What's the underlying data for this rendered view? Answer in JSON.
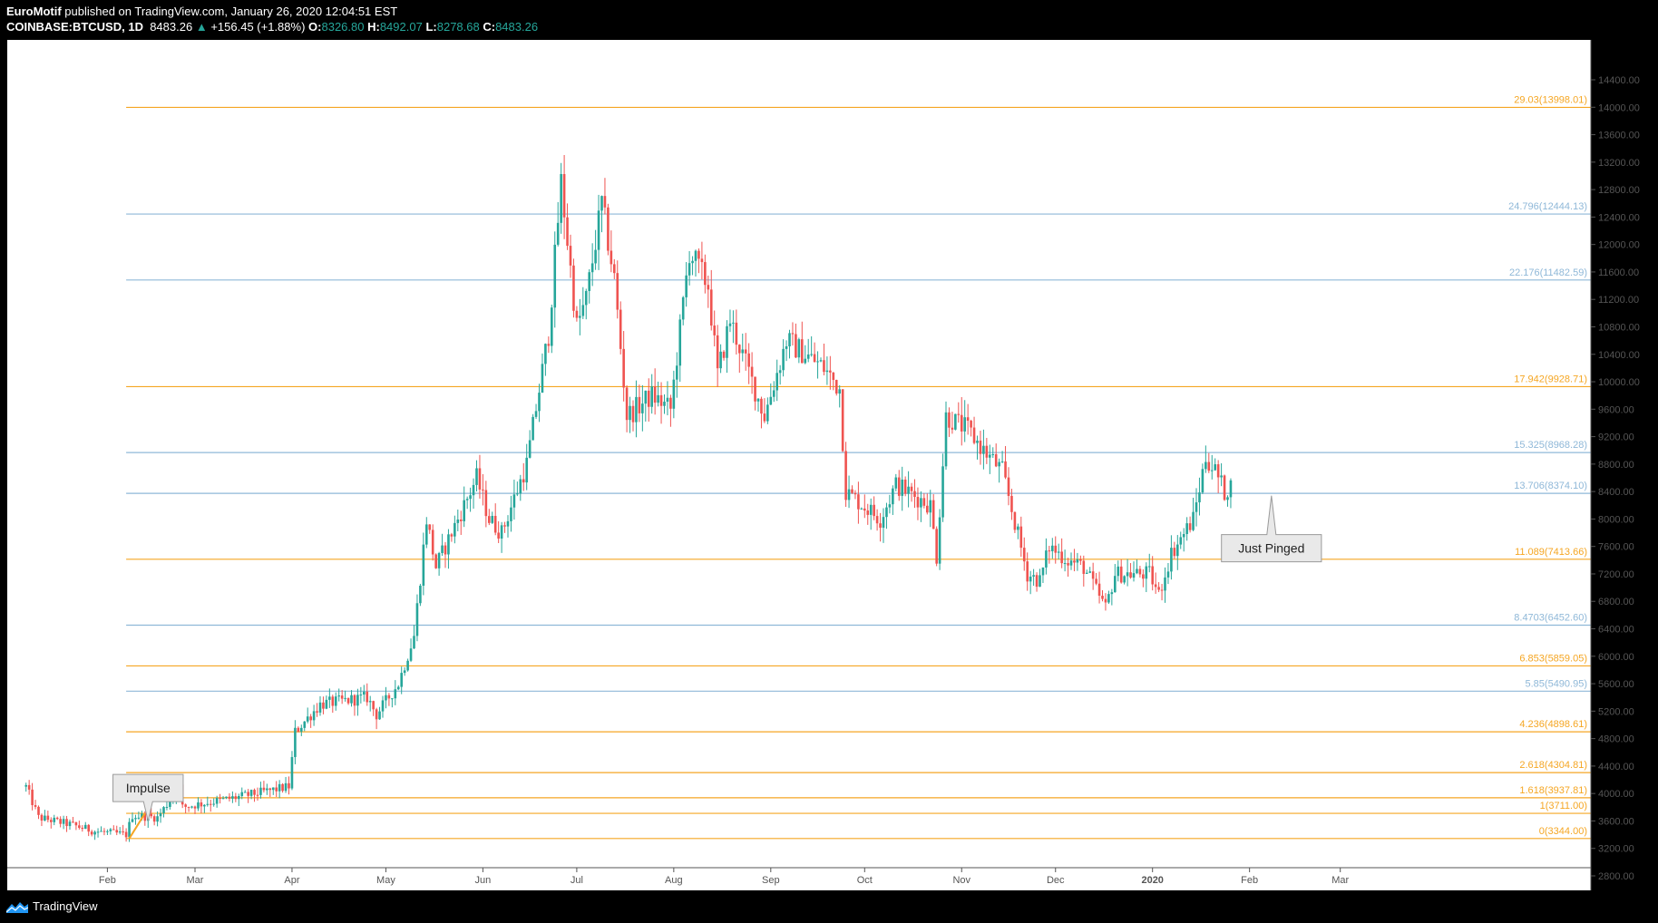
{
  "header": {
    "author": "EuroMotif",
    "published": "published on TradingView.com, January 26, 2020 12:04:51 EST",
    "symbol": "COINBASE:BTCUSD, 1D",
    "last": "8483.26",
    "change_arrow": "▲",
    "change": "+156.45 (+1.88%)",
    "o_label": "O:",
    "o_value": "8326.80",
    "h_label": "H:",
    "h_value": "8492.07",
    "l_label": "L:",
    "l_value": "8278.68",
    "c_label": "C:",
    "c_value": "8483.26"
  },
  "footer": {
    "brand": "TradingView",
    "logo_icon": "tradingview-logo-icon"
  },
  "colors": {
    "up": "#26a69a",
    "down": "#ef5350",
    "orange": "#f5a623",
    "blue": "#8fb8d8",
    "callout_bg": "#e9e9e9"
  },
  "chart_data": {
    "type": "candlestick",
    "symbol": "COINBASE:BTCUSD",
    "interval": "1D",
    "y_axis": {
      "min": 2800,
      "max": 14400,
      "step": 400,
      "labels": [
        "2800.00",
        "3200.00",
        "3600.00",
        "4000.00",
        "4400.00",
        "4800.00",
        "5200.00",
        "5600.00",
        "6000.00",
        "6400.00",
        "6800.00",
        "7200.00",
        "7600.00",
        "8000.00",
        "8400.00",
        "8800.00",
        "9200.00",
        "9600.00",
        "10000.00",
        "10400.00",
        "10800.00",
        "11200.00",
        "11600.00",
        "12000.00",
        "12400.00",
        "12800.00",
        "13200.00",
        "13600.00",
        "14000.00",
        "14400.00"
      ]
    },
    "x_axis": {
      "ticks": [
        {
          "label": "Feb",
          "date": "2019-02-01"
        },
        {
          "label": "Mar",
          "date": "2019-03-01"
        },
        {
          "label": "Apr",
          "date": "2019-04-01"
        },
        {
          "label": "May",
          "date": "2019-05-01"
        },
        {
          "label": "Jun",
          "date": "2019-06-01"
        },
        {
          "label": "Jul",
          "date": "2019-07-01"
        },
        {
          "label": "Aug",
          "date": "2019-08-01"
        },
        {
          "label": "Sep",
          "date": "2019-09-01"
        },
        {
          "label": "Oct",
          "date": "2019-10-01"
        },
        {
          "label": "Nov",
          "date": "2019-11-01"
        },
        {
          "label": "Dec",
          "date": "2019-12-01"
        },
        {
          "label": "2020",
          "date": "2020-01-01"
        },
        {
          "label": "Feb",
          "date": "2020-02-01"
        },
        {
          "label": "Mar",
          "date": "2020-03-01"
        }
      ]
    },
    "price_anchors": [
      {
        "date": "2019-01-06",
        "price": 4100
      },
      {
        "date": "2019-01-10",
        "price": 3650
      },
      {
        "date": "2019-01-20",
        "price": 3550
      },
      {
        "date": "2019-01-28",
        "price": 3450
      },
      {
        "date": "2019-02-07",
        "price": 3400
      },
      {
        "date": "2019-02-09",
        "price": 3680
      },
      {
        "date": "2019-02-17",
        "price": 3650
      },
      {
        "date": "2019-02-24",
        "price": 4100
      },
      {
        "date": "2019-02-25",
        "price": 3800
      },
      {
        "date": "2019-03-15",
        "price": 3950
      },
      {
        "date": "2019-03-31",
        "price": 4100
      },
      {
        "date": "2019-04-02",
        "price": 4900
      },
      {
        "date": "2019-04-10",
        "price": 5300
      },
      {
        "date": "2019-04-25",
        "price": 5400
      },
      {
        "date": "2019-04-28",
        "price": 5150
      },
      {
        "date": "2019-05-05",
        "price": 5600
      },
      {
        "date": "2019-05-10",
        "price": 6300
      },
      {
        "date": "2019-05-14",
        "price": 8000
      },
      {
        "date": "2019-05-17",
        "price": 7300
      },
      {
        "date": "2019-05-30",
        "price": 8600
      },
      {
        "date": "2019-06-03",
        "price": 8000
      },
      {
        "date": "2019-06-07",
        "price": 7800
      },
      {
        "date": "2019-06-15",
        "price": 8800
      },
      {
        "date": "2019-06-22",
        "price": 10700
      },
      {
        "date": "2019-06-26",
        "price": 12900
      },
      {
        "date": "2019-07-01",
        "price": 10800
      },
      {
        "date": "2019-07-04",
        "price": 11200
      },
      {
        "date": "2019-07-09",
        "price": 12600
      },
      {
        "date": "2019-07-13",
        "price": 11500
      },
      {
        "date": "2019-07-17",
        "price": 9500
      },
      {
        "date": "2019-07-25",
        "price": 9800
      },
      {
        "date": "2019-07-31",
        "price": 9600
      },
      {
        "date": "2019-08-06",
        "price": 11900
      },
      {
        "date": "2019-08-12",
        "price": 11400
      },
      {
        "date": "2019-08-15",
        "price": 10100
      },
      {
        "date": "2019-08-19",
        "price": 10900
      },
      {
        "date": "2019-08-30",
        "price": 9500
      },
      {
        "date": "2019-09-06",
        "price": 10600
      },
      {
        "date": "2019-09-18",
        "price": 10200
      },
      {
        "date": "2019-09-23",
        "price": 9900
      },
      {
        "date": "2019-09-25",
        "price": 8400
      },
      {
        "date": "2019-10-06",
        "price": 8000
      },
      {
        "date": "2019-10-11",
        "price": 8500
      },
      {
        "date": "2019-10-22",
        "price": 8200
      },
      {
        "date": "2019-10-24",
        "price": 7450
      },
      {
        "date": "2019-10-27",
        "price": 9500
      },
      {
        "date": "2019-11-03",
        "price": 9300
      },
      {
        "date": "2019-11-08",
        "price": 9000
      },
      {
        "date": "2019-11-14",
        "price": 8700
      },
      {
        "date": "2019-11-22",
        "price": 7200
      },
      {
        "date": "2019-11-26",
        "price": 7100
      },
      {
        "date": "2019-11-29",
        "price": 7600
      },
      {
        "date": "2019-12-05",
        "price": 7400
      },
      {
        "date": "2019-12-10",
        "price": 7300
      },
      {
        "date": "2019-12-17",
        "price": 6700
      },
      {
        "date": "2019-12-20",
        "price": 7200
      },
      {
        "date": "2019-12-31",
        "price": 7200
      },
      {
        "date": "2020-01-03",
        "price": 6900
      },
      {
        "date": "2020-01-07",
        "price": 7500
      },
      {
        "date": "2020-01-14",
        "price": 8000
      },
      {
        "date": "2020-01-18",
        "price": 8900
      },
      {
        "date": "2020-01-21",
        "price": 8700
      },
      {
        "date": "2020-01-24",
        "price": 8400
      },
      {
        "date": "2020-01-26",
        "price": 8483
      }
    ],
    "horizontal_lines": [
      {
        "label": "29.03(13998.01)",
        "price": 13998.01,
        "color": "orange"
      },
      {
        "label": "24.796(12444.13)",
        "price": 12444.13,
        "color": "blue"
      },
      {
        "label": "22.176(11482.59)",
        "price": 11482.59,
        "color": "blue"
      },
      {
        "label": "17.942(9928.71)",
        "price": 9928.71,
        "color": "orange"
      },
      {
        "label": "15.325(8968.28)",
        "price": 8968.28,
        "color": "blue"
      },
      {
        "label": "13.706(8374.10)",
        "price": 8374.1,
        "color": "blue"
      },
      {
        "label": "11.089(7413.66)",
        "price": 7413.66,
        "color": "orange"
      },
      {
        "label": "8.4703(6452.60)",
        "price": 6452.6,
        "color": "blue"
      },
      {
        "label": "6.853(5859.05)",
        "price": 5859.05,
        "color": "orange"
      },
      {
        "label": "5.85(5490.95)",
        "price": 5490.95,
        "color": "blue"
      },
      {
        "label": "4.236(4898.61)",
        "price": 4898.61,
        "color": "orange"
      },
      {
        "label": "2.618(4304.81)",
        "price": 4304.81,
        "color": "orange"
      },
      {
        "label": "1.618(3937.81)",
        "price": 3937.81,
        "color": "orange"
      },
      {
        "label": "1(3711.00)",
        "price": 3711.0,
        "color": "orange"
      },
      {
        "label": "0(3344.00)",
        "price": 3344.0,
        "color": "orange"
      }
    ],
    "annotations": [
      {
        "text": "Impulse",
        "date": "2019-02-14",
        "price": 4080,
        "pointer_price": 3600
      },
      {
        "text": "Just Pinged",
        "date": "2020-02-08",
        "price": 7575,
        "pointer_price": 8340
      }
    ],
    "impulse_segment": {
      "from_date": "2019-02-08",
      "from_price": 3344,
      "to_date": "2019-02-13",
      "to_price": 3711
    },
    "grid": false
  }
}
